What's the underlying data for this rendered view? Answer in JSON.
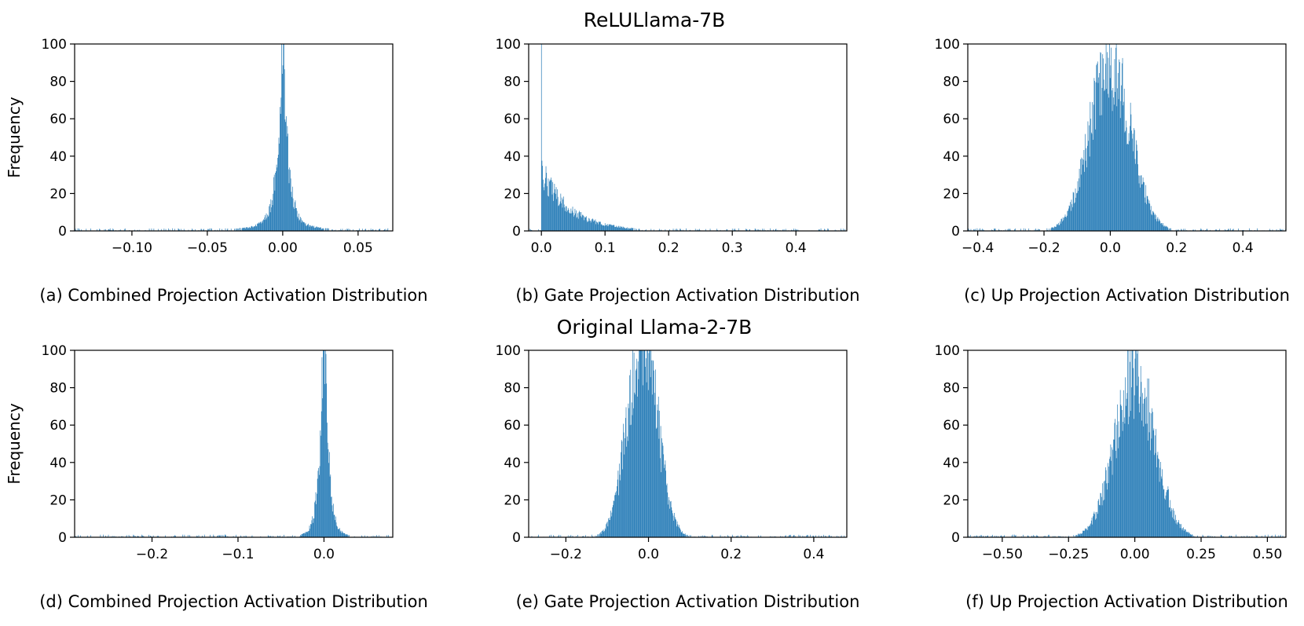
{
  "figure": {
    "row_titles": [
      "ReLULlama-7B",
      "Original Llama-2-7B"
    ]
  },
  "chart_data": [
    {
      "type": "bar",
      "row": 0,
      "col": 0,
      "caption": "(a) Combined Projection Activation Distribution",
      "ylabel": "Frequency",
      "xlim": [
        -0.138,
        0.073
      ],
      "ylim": [
        0,
        100
      ],
      "xticks": [
        -0.1,
        -0.05,
        0.0,
        0.05
      ],
      "xtick_labels": [
        "−0.10",
        "−0.05",
        "0.00",
        "0.05"
      ],
      "yticks": [
        0,
        20,
        40,
        60,
        80,
        100
      ],
      "ytick_labels": [
        "0",
        "20",
        "40",
        "60",
        "80",
        "100"
      ],
      "distribution": {
        "kind": "sharp-peak",
        "center": 0.0,
        "spread": 0.0035,
        "peak": 100,
        "tail_weight": 0.06,
        "tail_spread": 0.018
      },
      "color": "#1f77b4"
    },
    {
      "type": "bar",
      "row": 0,
      "col": 1,
      "caption": "(b) Gate Projection Activation Distribution",
      "ylabel": "",
      "xlim": [
        -0.02,
        0.48
      ],
      "ylim": [
        0,
        100
      ],
      "xticks": [
        0.0,
        0.1,
        0.2,
        0.3,
        0.4
      ],
      "xtick_labels": [
        "0.0",
        "0.1",
        "0.2",
        "0.3",
        "0.4"
      ],
      "yticks": [
        0,
        20,
        40,
        60,
        80,
        100
      ],
      "ytick_labels": [
        "0",
        "20",
        "40",
        "60",
        "80",
        "100"
      ],
      "distribution": {
        "kind": "exponential-decay",
        "start": 0.0,
        "spike": 100,
        "initial": 32,
        "decay": 0.045
      },
      "color": "#1f77b4"
    },
    {
      "type": "bar",
      "row": 0,
      "col": 2,
      "caption": "(c) Up Projection Activation Distribution",
      "ylabel": "",
      "xlim": [
        -0.43,
        0.53
      ],
      "ylim": [
        0,
        100
      ],
      "xticks": [
        -0.4,
        -0.2,
        0.0,
        0.2,
        0.4
      ],
      "xtick_labels": [
        "−0.4",
        "−0.2",
        "0.0",
        "0.2",
        "0.4"
      ],
      "yticks": [
        0,
        20,
        40,
        60,
        80,
        100
      ],
      "ytick_labels": [
        "0",
        "20",
        "40",
        "60",
        "80",
        "100"
      ],
      "distribution": {
        "kind": "gaussian",
        "center": 0.0,
        "spread": 0.062,
        "peak": 88
      },
      "color": "#1f77b4"
    },
    {
      "type": "bar",
      "row": 1,
      "col": 0,
      "caption": "(d) Combined Projection Activation Distribution",
      "ylabel": "Frequency",
      "xlim": [
        -0.29,
        0.08
      ],
      "ylim": [
        0,
        100
      ],
      "xticks": [
        -0.2,
        -0.1,
        0.0
      ],
      "xtick_labels": [
        "−0.2",
        "−0.1",
        "0.0"
      ],
      "yticks": [
        0,
        20,
        40,
        60,
        80,
        100
      ],
      "ytick_labels": [
        "0",
        "20",
        "40",
        "60",
        "80",
        "100"
      ],
      "distribution": {
        "kind": "sharp-peak",
        "center": 0.0,
        "spread": 0.0045,
        "peak": 130,
        "tail_weight": 0.05,
        "tail_spread": 0.014
      },
      "color": "#1f77b4"
    },
    {
      "type": "bar",
      "row": 1,
      "col": 1,
      "caption": "(e) Gate Projection Activation Distribution",
      "ylabel": "",
      "xlim": [
        -0.29,
        0.48
      ],
      "ylim": [
        0,
        100
      ],
      "xticks": [
        -0.2,
        0.0,
        0.2,
        0.4
      ],
      "xtick_labels": [
        "−0.2",
        "0.0",
        "0.2",
        "0.4"
      ],
      "yticks": [
        0,
        20,
        40,
        60,
        80,
        100
      ],
      "ytick_labels": [
        "0",
        "20",
        "40",
        "60",
        "80",
        "100"
      ],
      "distribution": {
        "kind": "gaussian",
        "center": -0.015,
        "spread": 0.036,
        "peak": 108
      },
      "color": "#1f77b4"
    },
    {
      "type": "bar",
      "row": 1,
      "col": 2,
      "caption": "(f) Up Projection Activation Distribution",
      "ylabel": "",
      "xlim": [
        -0.63,
        0.57
      ],
      "ylim": [
        0,
        100
      ],
      "xticks": [
        -0.5,
        -0.25,
        0.0,
        0.25,
        0.5
      ],
      "xtick_labels": [
        "−0.50",
        "−0.25",
        "0.00",
        "0.25",
        "0.50"
      ],
      "yticks": [
        0,
        20,
        40,
        60,
        80,
        100
      ],
      "ytick_labels": [
        "0",
        "20",
        "40",
        "60",
        "80",
        "100"
      ],
      "distribution": {
        "kind": "gaussian",
        "center": 0.0,
        "spread": 0.075,
        "peak": 87
      },
      "color": "#1f77b4"
    }
  ]
}
